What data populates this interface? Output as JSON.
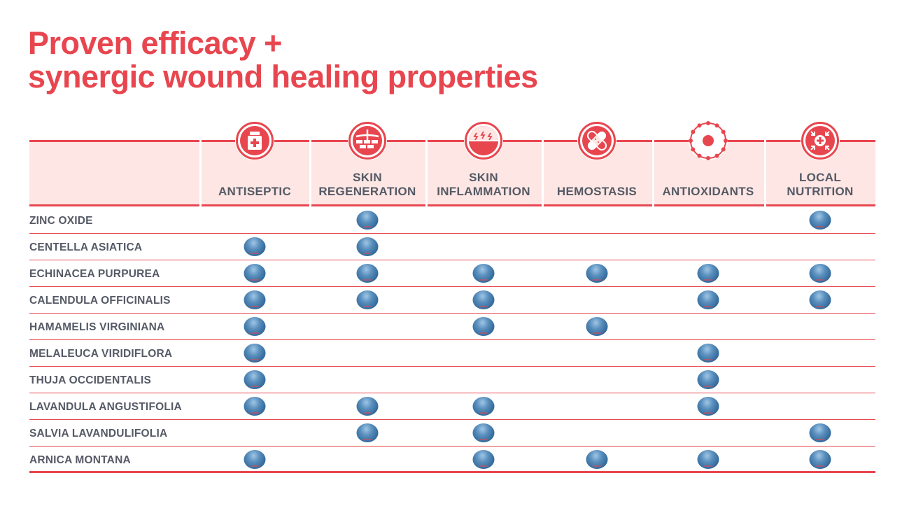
{
  "title": {
    "line1": "Proven efficacy +",
    "line2": "synergic wound healing properties"
  },
  "colors": {
    "accent": "#e8464f",
    "band": "#fde6e3",
    "text": "#555a66",
    "dot": "#4a7fb0"
  },
  "columns": [
    {
      "l1": "",
      "l2": "ANTISEPTIC",
      "icon": "medicine-bottle-icon"
    },
    {
      "l1": "SKIN",
      "l2": "REGENERATION",
      "icon": "skin-layers-icon"
    },
    {
      "l1": "SKIN",
      "l2": "INFLAMMATION",
      "icon": "inflamed-skin-icon"
    },
    {
      "l1": "",
      "l2": "HEMOSTASIS",
      "icon": "bandage-icon"
    },
    {
      "l1": "",
      "l2": "ANTIOXIDANTS",
      "icon": "molecule-ring-icon"
    },
    {
      "l1": "LOCAL",
      "l2": "NUTRITION",
      "icon": "nutrition-cross-icon"
    }
  ],
  "rows": [
    {
      "label": "ZINC OXIDE",
      "marks": [
        false,
        true,
        false,
        false,
        false,
        true
      ]
    },
    {
      "label": "CENTELLA ASIATICA",
      "marks": [
        true,
        true,
        false,
        false,
        false,
        false
      ]
    },
    {
      "label": "ECHINACEA PURPUREA",
      "marks": [
        true,
        true,
        true,
        true,
        true,
        true
      ]
    },
    {
      "label": "CALENDULA OFFICINALIS",
      "marks": [
        true,
        true,
        true,
        false,
        true,
        true
      ]
    },
    {
      "label": "HAMAMELIS VIRGINIANA",
      "marks": [
        true,
        false,
        true,
        true,
        false,
        false
      ]
    },
    {
      "label": "MELALEUCA VIRIDIFLORA",
      "marks": [
        true,
        false,
        false,
        false,
        true,
        false
      ]
    },
    {
      "label": "THUJA OCCIDENTALIS",
      "marks": [
        true,
        false,
        false,
        false,
        true,
        false
      ]
    },
    {
      "label": "LAVANDULA ANGUSTIFOLIA",
      "marks": [
        true,
        true,
        true,
        false,
        true,
        false
      ]
    },
    {
      "label": "SALVIA LAVANDULIFOLIA",
      "marks": [
        false,
        true,
        true,
        false,
        false,
        true
      ]
    },
    {
      "label": "ARNICA MONTANA",
      "marks": [
        true,
        false,
        true,
        true,
        true,
        true
      ]
    }
  ]
}
